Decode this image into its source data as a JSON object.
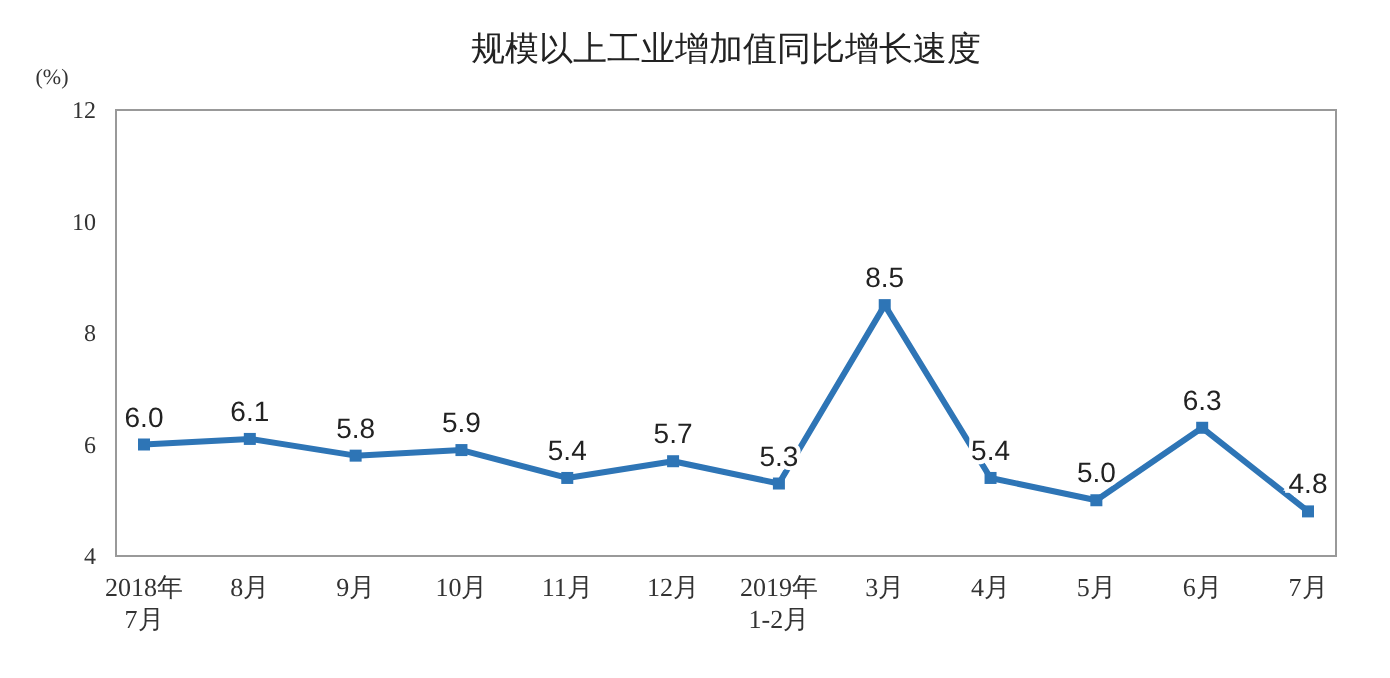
{
  "chart_data": {
    "type": "line",
    "title": "规模以上工业增加值同比增长速度",
    "ylabel": "(%)",
    "categories": [
      "2018年\n7月",
      "8月",
      "9月",
      "10月",
      "11月",
      "12月",
      "2019年\n1-2月",
      "3月",
      "4月",
      "5月",
      "6月",
      "7月"
    ],
    "series": [
      {
        "color": "#2e75b6",
        "values": [
          6.0,
          6.1,
          5.8,
          5.9,
          5.4,
          5.7,
          5.3,
          8.5,
          5.4,
          5.0,
          6.3,
          4.8
        ],
        "value_labels": [
          "6.0",
          "6.1",
          "5.8",
          "5.9",
          "5.4",
          "5.7",
          "5.3",
          "8.5",
          "5.4",
          "5.0",
          "6.3",
          "4.8"
        ]
      }
    ],
    "ylim": [
      4,
      12
    ],
    "yticks": [
      4,
      6,
      8,
      10,
      12
    ],
    "marker": "square",
    "line_style": "solid",
    "grid": false
  }
}
